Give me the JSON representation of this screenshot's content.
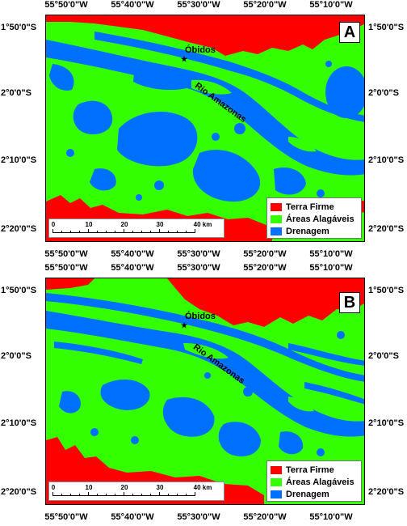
{
  "colors": {
    "terra_firme": "#ff0000",
    "areas_alagaveis": "#33ff00",
    "drenagem": "#0070ff"
  },
  "coords": {
    "top": [
      "55°50'0\"W",
      "55°40'0\"W",
      "55°30'0\"W",
      "55°20'0\"W",
      "55°10'0\"W"
    ],
    "bottom": [
      "55°50'0\"W",
      "55°40'0\"W",
      "55°30'0\"W",
      "55°20'0\"W",
      "55°10'0\"W"
    ],
    "left": [
      "1°50'0\"S",
      "2°0'0\"S",
      "2°10'0\"S",
      "2°20'0\"S"
    ],
    "right": [
      "1°50'0\"S",
      "2°0'0\"S",
      "2°10'0\"S",
      "2°20'0\"S"
    ]
  },
  "legend": {
    "items": [
      {
        "label": "Terra Firme",
        "color": "#ff0000"
      },
      {
        "label": "Áreas Alagáveis",
        "color": "#33ff00"
      },
      {
        "label": "Drenagem",
        "color": "#0070ff"
      }
    ]
  },
  "scalebar": {
    "labels": [
      "0",
      "10",
      "20",
      "30",
      "40 km"
    ]
  },
  "places": {
    "city": "Óbidos",
    "river": "Rio Amazonas"
  },
  "panels": [
    {
      "letter": "A"
    },
    {
      "letter": "B"
    }
  ]
}
